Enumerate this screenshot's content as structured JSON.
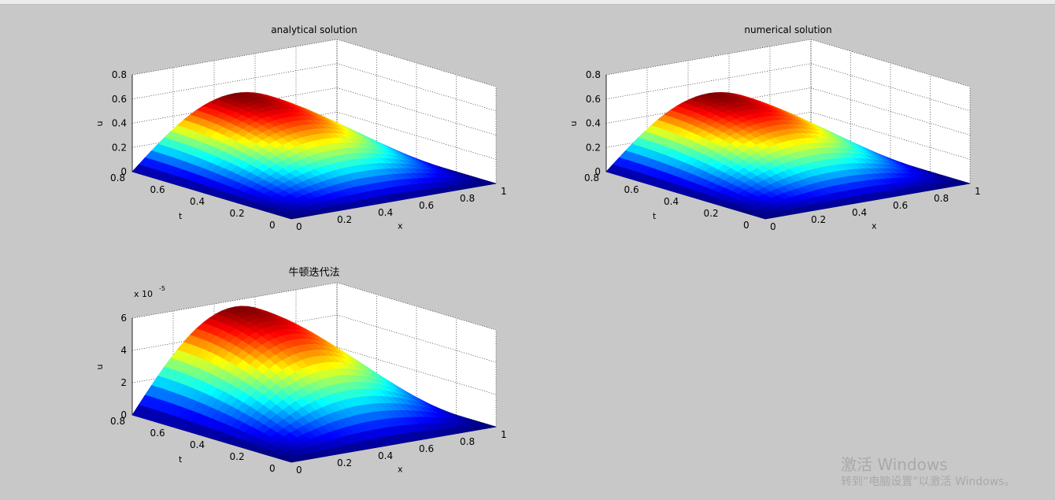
{
  "window": {
    "background": "#c8c8c8"
  },
  "chart_data": [
    {
      "type": "surface",
      "title": "analytical solution",
      "xlabel": "x",
      "ylabel": "t",
      "zlabel": "u",
      "x_range": [
        0,
        1
      ],
      "t_range": [
        0,
        0.8
      ],
      "z_range": [
        0,
        0.8
      ],
      "x_ticks": [
        "0",
        "0.2",
        "0.4",
        "0.6",
        "0.8",
        "1"
      ],
      "t_ticks": [
        "0",
        "0.2",
        "0.4",
        "0.6",
        "0.8"
      ],
      "z_ticks": [
        "0",
        "0.2",
        "0.4",
        "0.6",
        "0.8"
      ],
      "z_exponent": "",
      "peak": 0.5,
      "colormap": "jet",
      "grid": true
    },
    {
      "type": "surface",
      "title": "numerical solution",
      "xlabel": "x",
      "ylabel": "t",
      "zlabel": "u",
      "x_range": [
        0,
        1
      ],
      "t_range": [
        0,
        0.8
      ],
      "z_range": [
        0,
        0.8
      ],
      "x_ticks": [
        "0",
        "0.2",
        "0.4",
        "0.6",
        "0.8",
        "1"
      ],
      "t_ticks": [
        "0",
        "0.2",
        "0.4",
        "0.6",
        "0.8"
      ],
      "z_ticks": [
        "0",
        "0.2",
        "0.4",
        "0.6",
        "0.8"
      ],
      "z_exponent": "",
      "peak": 0.5,
      "colormap": "jet",
      "grid": true
    },
    {
      "type": "surface",
      "title": "牛顿迭代法",
      "xlabel": "x",
      "ylabel": "t",
      "zlabel": "u",
      "x_range": [
        0,
        1
      ],
      "t_range": [
        0,
        0.8
      ],
      "z_range": [
        0,
        6
      ],
      "x_ticks": [
        "0",
        "0.2",
        "0.4",
        "0.6",
        "0.8",
        "1"
      ],
      "t_ticks": [
        "0",
        "0.2",
        "0.4",
        "0.6",
        "0.8"
      ],
      "z_ticks": [
        "0",
        "2",
        "4",
        "6"
      ],
      "z_exponent": "x 10",
      "z_exponent_power": "-5",
      "peak": 5.6,
      "colormap": "jet",
      "grid": true
    }
  ],
  "watermark": {
    "line1": "激活 Windows",
    "line2": "转到“电脑设置”以激活 Windows。"
  }
}
